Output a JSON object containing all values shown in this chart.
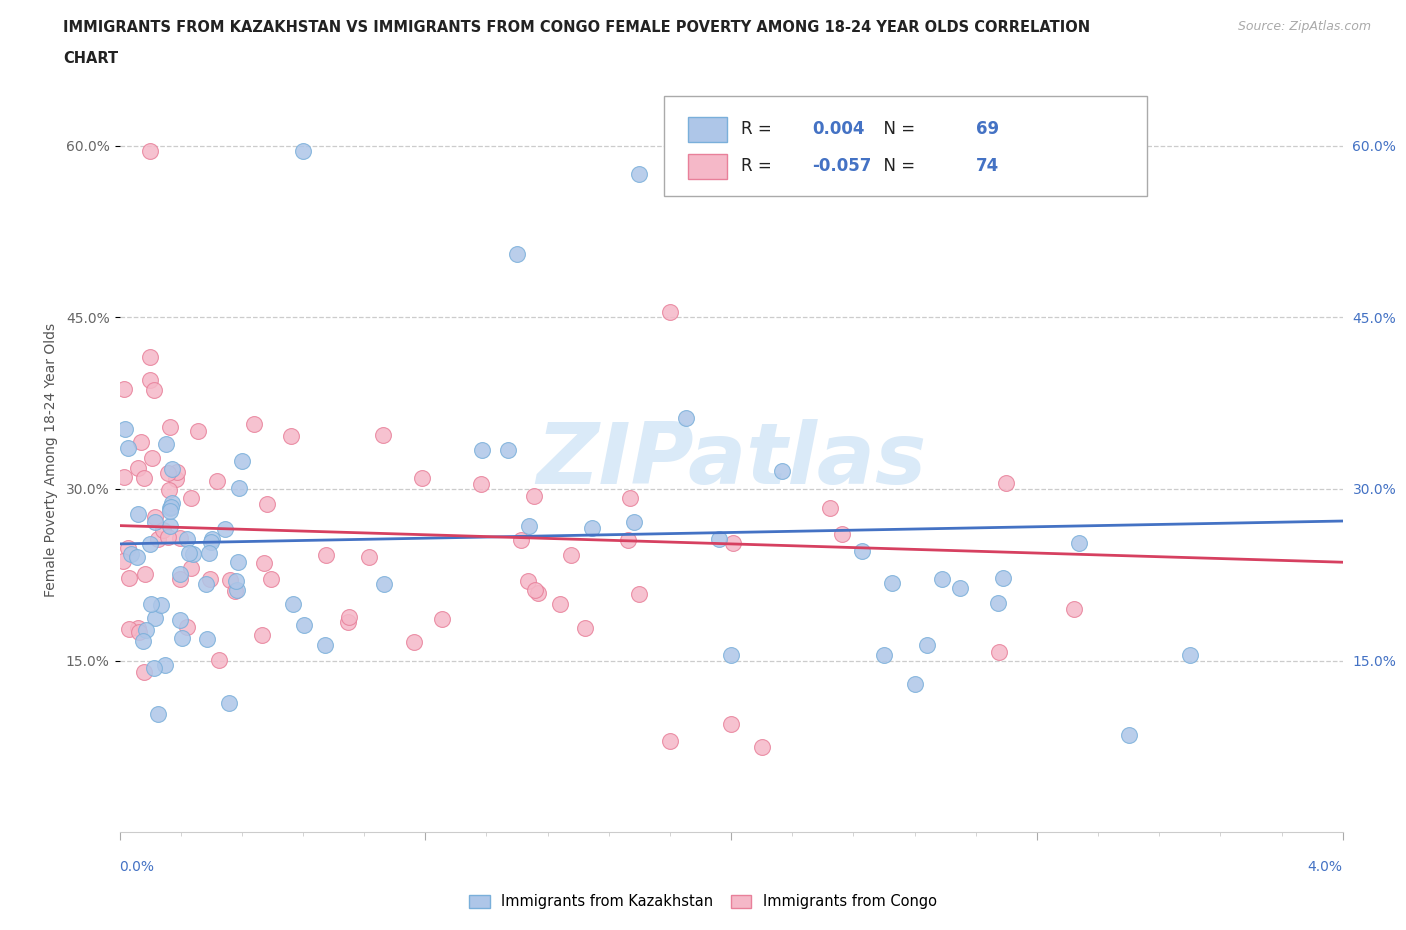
{
  "title_line1": "IMMIGRANTS FROM KAZAKHSTAN VS IMMIGRANTS FROM CONGO FEMALE POVERTY AMONG 18-24 YEAR OLDS CORRELATION",
  "title_line2": "CHART",
  "source": "Source: ZipAtlas.com",
  "ylabel": "Female Poverty Among 18-24 Year Olds",
  "xlim": [
    0.0,
    0.04
  ],
  "ylim": [
    0.0,
    0.65
  ],
  "xticks": [
    0.0,
    0.01,
    0.02,
    0.03,
    0.04
  ],
  "yticks": [
    0.15,
    0.3,
    0.45,
    0.6
  ],
  "xticklabels_bottom": [
    "0.0%",
    "",
    "",
    "",
    "4.0%"
  ],
  "yticklabels_left": [
    "15.0%",
    "30.0%",
    "45.0%",
    "60.0%"
  ],
  "yticklabels_right": [
    "15.0%",
    "30.0%",
    "45.0%",
    "60.0%"
  ],
  "kazakhstan_fill": "#aec6e8",
  "kazakhstan_edge": "#7aafda",
  "congo_fill": "#f5b8c8",
  "congo_edge": "#e8809a",
  "kazakhstan_line_color": "#4472c4",
  "congo_line_color": "#d64060",
  "R_N_color": "#4472c4",
  "kazakhstan_R": 0.004,
  "kazakhstan_N": 69,
  "congo_R": -0.057,
  "congo_N": 74,
  "legend_label_kaz": "Immigrants from Kazakhstan",
  "legend_label_congo": "Immigrants from Congo",
  "background_color": "#ffffff",
  "grid_color": "#cccccc",
  "watermark_text": "ZIPatlas",
  "watermark_color": "#daeaf8",
  "marker_size": 130,
  "seed": 123
}
